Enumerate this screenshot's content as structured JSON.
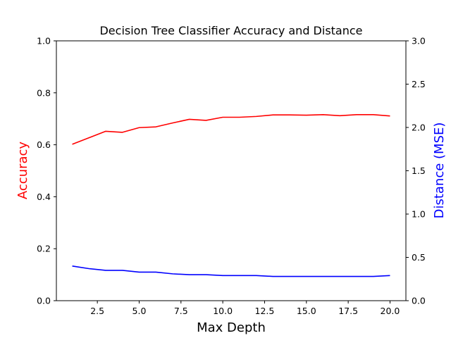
{
  "chart_data": {
    "type": "line",
    "title": "Decision Tree Classifier Accuracy and Distance",
    "xlabel": "Max Depth",
    "ylabel_left": "Accuracy",
    "ylabel_right": "Distance (MSE)",
    "xlim": [
      0.05,
      20.95
    ],
    "ylim_left": [
      0,
      1.0
    ],
    "ylim_right": [
      0,
      3.0
    ],
    "x_ticks": [
      2.5,
      5.0,
      7.5,
      10.0,
      12.5,
      15.0,
      17.5,
      20.0
    ],
    "x_tick_labels": [
      "2.5",
      "5.0",
      "7.5",
      "10.0",
      "12.5",
      "15.0",
      "17.5",
      "20.0"
    ],
    "y_ticks_left": [
      0.0,
      0.2,
      0.4,
      0.6,
      0.8,
      1.0
    ],
    "y_tick_labels_left": [
      "0.0",
      "0.2",
      "0.4",
      "0.6",
      "0.8",
      "1.0"
    ],
    "y_ticks_right": [
      0.0,
      0.5,
      1.0,
      1.5,
      2.0,
      2.5,
      3.0
    ],
    "y_tick_labels_right": [
      "0.0",
      "0.5",
      "1.0",
      "1.5",
      "2.0",
      "2.5",
      "3.0"
    ],
    "grid": false,
    "x": [
      1,
      2,
      3,
      4,
      5,
      6,
      7,
      8,
      9,
      10,
      11,
      12,
      13,
      14,
      15,
      16,
      17,
      18,
      19,
      20
    ],
    "series": [
      {
        "axis": "left",
        "color": "#ff0000",
        "values": [
          0.602,
          0.627,
          0.652,
          0.648,
          0.666,
          0.669,
          0.684,
          0.698,
          0.694,
          0.706,
          0.706,
          0.709,
          0.715,
          0.715,
          0.714,
          0.716,
          0.712,
          0.716,
          0.716,
          0.711
        ]
      },
      {
        "axis": "right",
        "color": "#0000ff",
        "values": [
          0.4,
          0.37,
          0.35,
          0.35,
          0.33,
          0.33,
          0.31,
          0.3,
          0.3,
          0.29,
          0.29,
          0.29,
          0.28,
          0.28,
          0.28,
          0.28,
          0.28,
          0.28,
          0.28,
          0.29
        ]
      }
    ]
  }
}
